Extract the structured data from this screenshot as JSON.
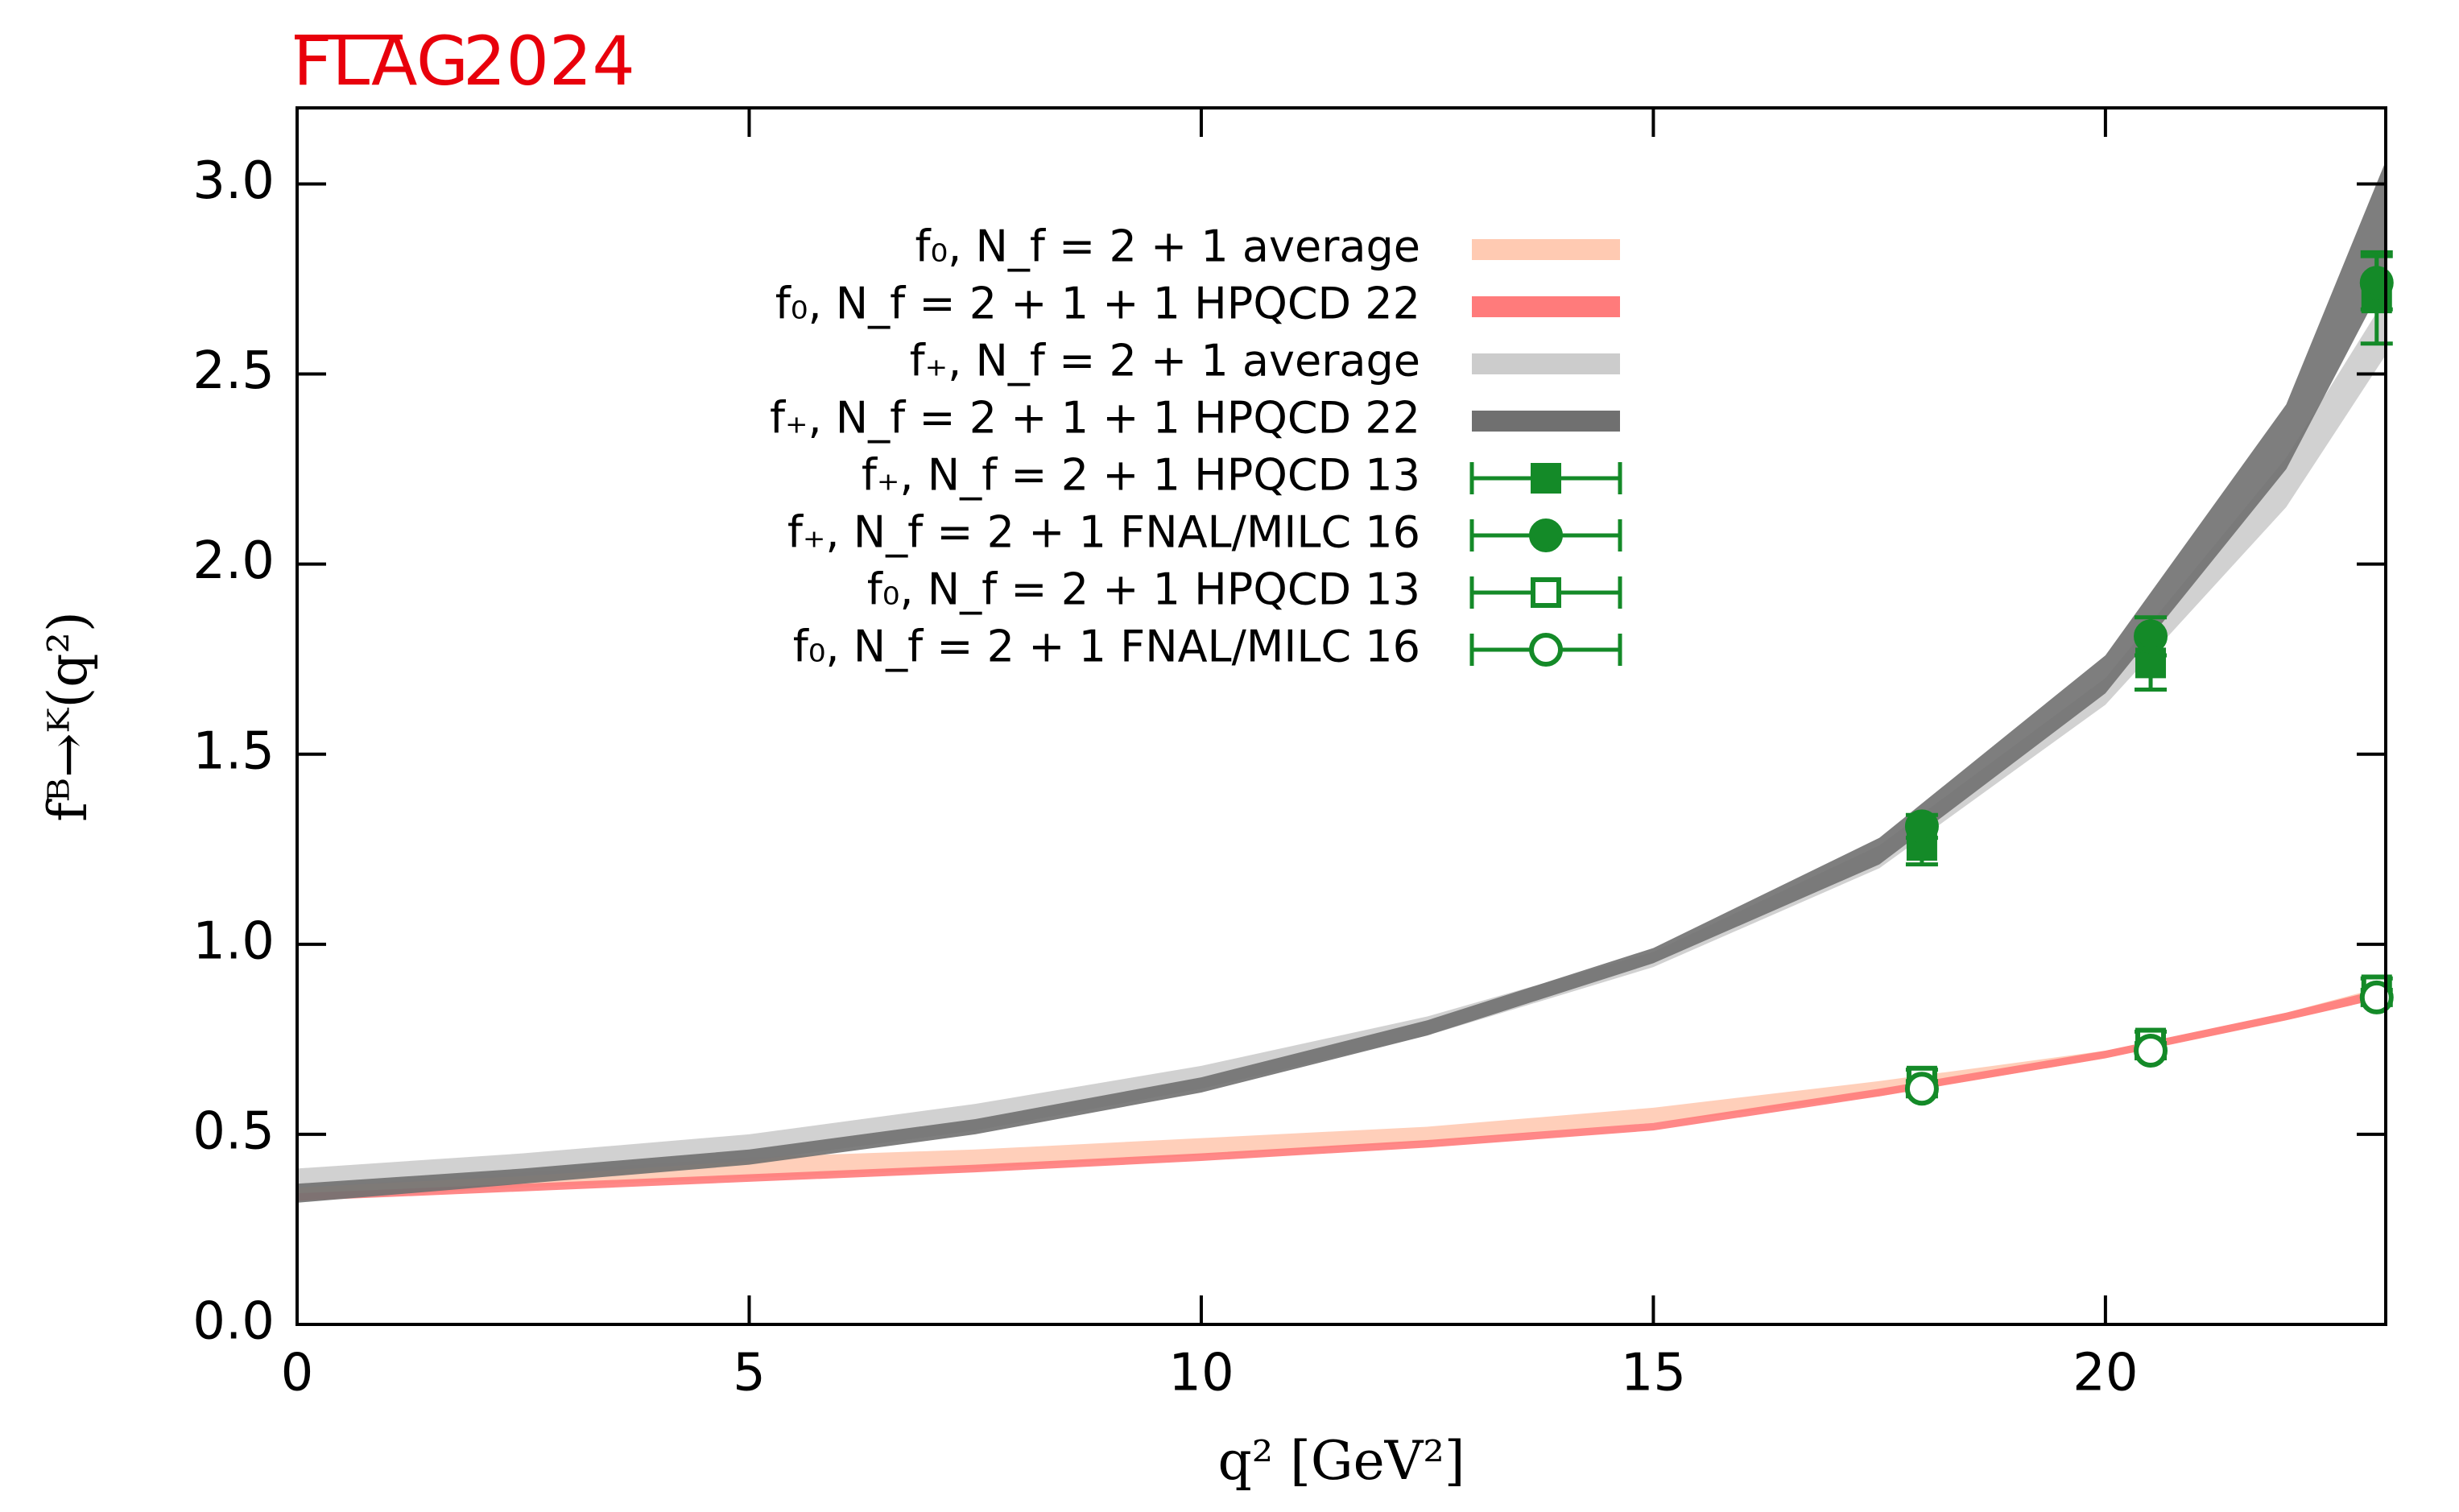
{
  "chart_data": {
    "type": "band",
    "title": "FLAG",
    "subtitle": "2024",
    "x_label": "q² [GeV²]",
    "y_label": "fᴮ→ᴷ(q²)",
    "xlim": [
      0,
      23.1
    ],
    "ylim": [
      0,
      3.2
    ],
    "xticks": [
      0,
      5,
      10,
      15,
      20
    ],
    "yticks": [
      {
        "value": 0,
        "label": "0.0"
      },
      0.5,
      {
        "value": 1,
        "label": "1.0"
      },
      1.5,
      {
        "value": 2,
        "label": "2.0"
      },
      2.5,
      {
        "value": 3,
        "label": "3.0"
      }
    ],
    "series": [
      {
        "name": "f₀, N_f = 2 + 1 average",
        "style": "band",
        "color": "#ffcab2",
        "x": [
          0,
          2.5,
          5,
          7.5,
          10,
          12.5,
          15,
          17.5,
          20,
          22,
          23.1
        ],
        "lower": [
          0.33,
          0.36,
          0.385,
          0.41,
          0.445,
          0.48,
          0.53,
          0.6,
          0.7,
          0.8,
          0.86
        ],
        "upper": [
          0.36,
          0.4,
          0.44,
          0.46,
          0.49,
          0.52,
          0.57,
          0.64,
          0.72,
          0.82,
          0.89
        ]
      },
      {
        "name": "f₀, N_f = 2 + 1 + 1 HPQCD 22",
        "style": "band",
        "color": "#ff7b7b",
        "x": [
          0,
          2.5,
          5,
          7.5,
          10,
          12.5,
          15,
          17.5,
          20,
          22,
          23.1
        ],
        "lower": [
          0.325,
          0.35,
          0.375,
          0.4,
          0.43,
          0.465,
          0.51,
          0.6,
          0.7,
          0.8,
          0.86
        ],
        "upper": [
          0.345,
          0.37,
          0.395,
          0.42,
          0.45,
          0.485,
          0.53,
          0.62,
          0.72,
          0.82,
          0.885
        ]
      },
      {
        "name": "f₊, N_f = 2 + 1 average",
        "style": "band",
        "color": "#cccccc",
        "x": [
          0,
          2.5,
          5,
          7.5,
          10,
          12.5,
          15,
          17.5,
          20,
          22,
          23.1
        ],
        "lower": [
          0.36,
          0.39,
          0.43,
          0.51,
          0.62,
          0.76,
          0.94,
          1.2,
          1.63,
          2.15,
          2.55
        ],
        "upper": [
          0.41,
          0.45,
          0.5,
          0.58,
          0.68,
          0.81,
          0.98,
          1.26,
          1.7,
          2.28,
          2.7
        ]
      },
      {
        "name": "f₊, N_f = 2 + 1 + 1 HPQCD 22",
        "style": "band",
        "color": "#707070",
        "x": [
          0,
          2.5,
          5,
          7.5,
          10,
          12.5,
          15,
          17.5,
          20,
          22,
          23.1
        ],
        "lower": [
          0.32,
          0.37,
          0.42,
          0.5,
          0.61,
          0.76,
          0.95,
          1.21,
          1.66,
          2.25,
          2.75
        ],
        "upper": [
          0.37,
          0.41,
          0.46,
          0.54,
          0.65,
          0.8,
          0.99,
          1.28,
          1.76,
          2.42,
          3.06
        ]
      },
      {
        "name": "f₊, N_f = 2 + 1 HPQCD 13",
        "style": "point",
        "marker": "square",
        "filled": true,
        "color": "#148a28",
        "x": [
          17.97,
          20.5,
          23.0
        ],
        "values": [
          1.26,
          1.74,
          2.7
        ],
        "errors": [
          0.05,
          0.07,
          0.12
        ]
      },
      {
        "name": "f₊, N_f = 2 + 1 FNAL/MILC 16",
        "style": "point",
        "marker": "circle",
        "filled": true,
        "color": "#148a28",
        "x": [
          17.97,
          20.5,
          23.0
        ],
        "values": [
          1.31,
          1.81,
          2.74
        ],
        "errors": [
          0.03,
          0.05,
          0.07
        ]
      },
      {
        "name": "f₀, N_f = 2 + 1 HPQCD 13",
        "style": "point",
        "marker": "square",
        "filled": false,
        "color": "#148a28",
        "x": [
          17.97,
          20.5,
          23.0
        ],
        "values": [
          0.64,
          0.74,
          0.88
        ],
        "errors": [
          0.03,
          0.03,
          0.03
        ]
      },
      {
        "name": "f₀, N_f = 2 + 1 FNAL/MILC 16",
        "style": "point",
        "marker": "circle",
        "filled": false,
        "color": "#148a28",
        "x": [
          17.97,
          20.5,
          23.0
        ],
        "values": [
          0.62,
          0.72,
          0.86
        ],
        "errors": [
          0.02,
          0.02,
          0.02
        ]
      }
    ]
  }
}
